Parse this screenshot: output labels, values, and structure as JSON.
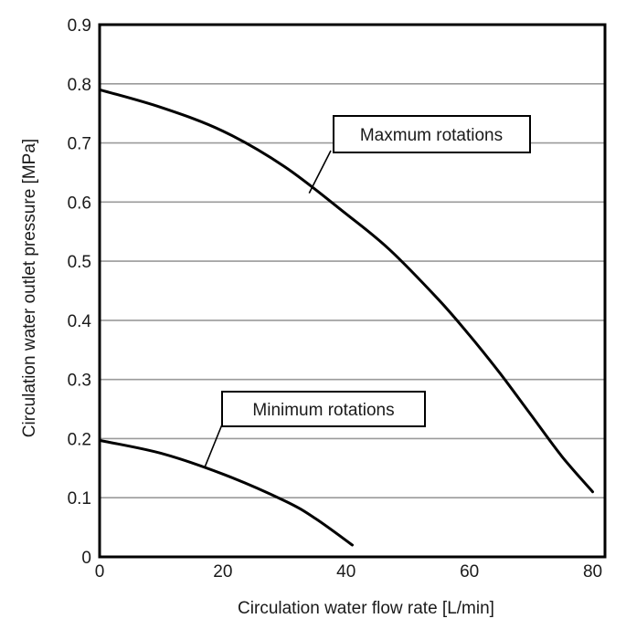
{
  "chart_data": {
    "type": "line",
    "title": "",
    "xlabel": "Circulation water flow rate [L/min]",
    "ylabel": "Circulation water outlet pressure [MPa]",
    "xlim": [
      0,
      82
    ],
    "ylim": [
      0,
      0.9
    ],
    "xticks": [
      0,
      20,
      40,
      60,
      80
    ],
    "xtick_labels": [
      "0",
      "20",
      "40",
      "60",
      "80"
    ],
    "yticks": [
      0,
      0.1,
      0.2,
      0.3,
      0.4,
      0.5,
      0.6,
      0.7,
      0.8,
      0.9
    ],
    "ytick_labels": [
      "0",
      "0.1",
      "0.2",
      "0.3",
      "0.4",
      "0.5",
      "0.6",
      "0.7",
      "0.8",
      "0.9"
    ],
    "grid": "horizontal",
    "series": [
      {
        "name": "Maxmum rotations",
        "x": [
          0,
          10,
          20,
          30,
          40,
          47,
          55,
          60,
          65,
          70,
          75,
          80
        ],
        "y": [
          0.79,
          0.76,
          0.72,
          0.66,
          0.58,
          0.52,
          0.435,
          0.375,
          0.31,
          0.24,
          0.17,
          0.11
        ]
      },
      {
        "name": "Minimum rotations",
        "x": [
          0,
          10,
          20,
          30,
          35,
          41
        ],
        "y": [
          0.197,
          0.175,
          0.14,
          0.095,
          0.065,
          0.02
        ]
      }
    ],
    "annotations": [
      {
        "text": "Maxmum rotations",
        "series": 0,
        "point": [
          34,
          0.615
        ]
      },
      {
        "text": "Minimum rotations",
        "series": 1,
        "point": [
          17,
          0.15
        ]
      }
    ]
  }
}
